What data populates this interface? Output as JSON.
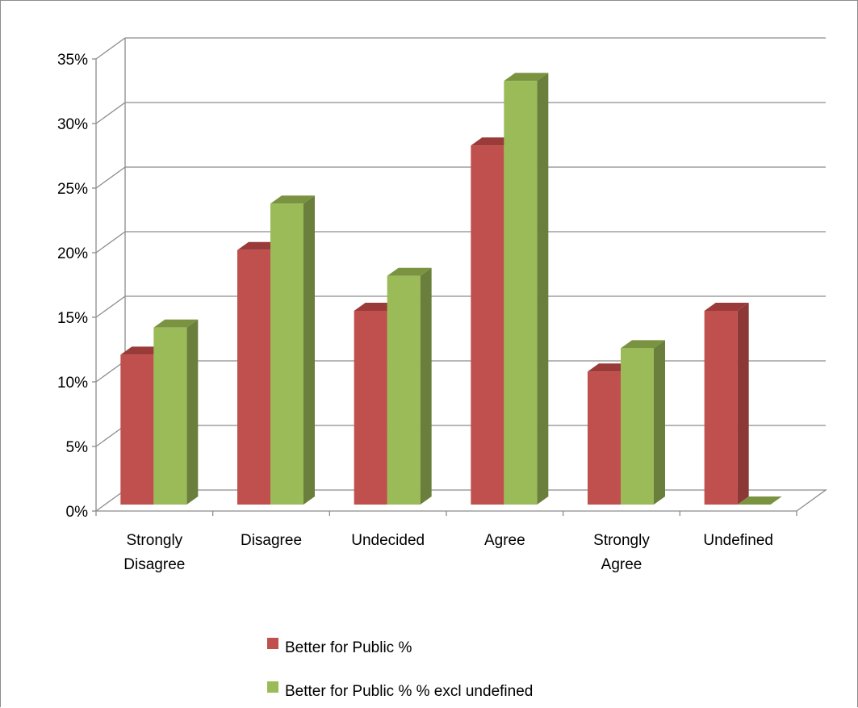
{
  "chart_data": {
    "type": "bar",
    "style": "3d-clustered-column",
    "categories": [
      "Strongly Disagree",
      "Disagree",
      "Undecided",
      "Agree",
      "Strongly Agree",
      "Undefined"
    ],
    "category_lines": [
      [
        "Strongly",
        "Disagree"
      ],
      [
        "Disagree"
      ],
      [
        "Undecided"
      ],
      [
        "Agree"
      ],
      [
        "Strongly",
        "Agree"
      ],
      [
        "Undefined"
      ]
    ],
    "series": [
      {
        "name": "Better for Public %",
        "values": [
          11.6,
          19.7,
          15.0,
          27.8,
          10.3,
          15.0
        ],
        "color": "#c0504d",
        "side_color": "#8c3836",
        "top_color": "#9b3b39"
      },
      {
        "name": "Better for Public % % excl undefined",
        "values": [
          13.7,
          23.3,
          17.7,
          32.8,
          12.1,
          0
        ],
        "color": "#9bbb59",
        "side_color": "#6a7f3c",
        "top_color": "#7a9340"
      }
    ],
    "yticks": [
      "0%",
      "5%",
      "10%",
      "15%",
      "20%",
      "25%",
      "30%",
      "35%"
    ],
    "ylim": [
      0,
      35
    ],
    "grid": true,
    "legend_position": "bottom"
  }
}
